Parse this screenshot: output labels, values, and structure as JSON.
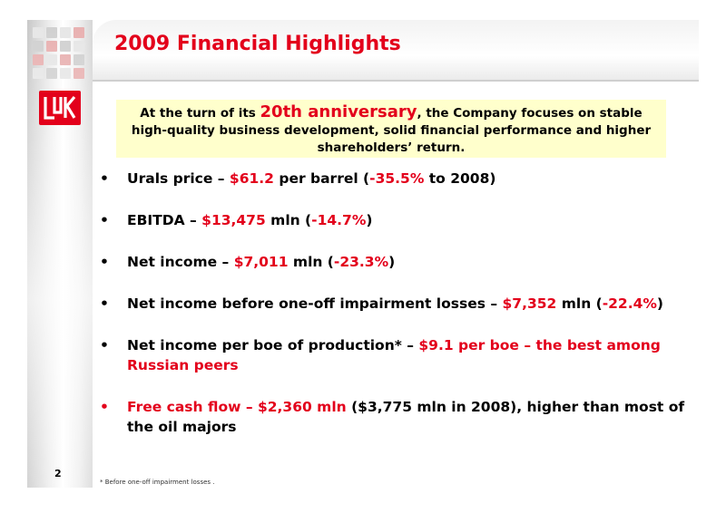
{
  "title": "2009 Financial Highlights",
  "callout": {
    "part1": "At the turn of its ",
    "highlight": "20th anniversary",
    "part2": ", the Company focuses on stable high-quality business development, solid financial performance and higher shareholders’ return."
  },
  "bullets": [
    {
      "segments": [
        {
          "text": "Urals price – ",
          "red": false
        },
        {
          "text": "$61.2",
          "red": true
        },
        {
          "text": " per barrel (",
          "red": false
        },
        {
          "text": "-35.5%",
          "red": true
        },
        {
          "text": " to 2008)",
          "red": false
        }
      ]
    },
    {
      "segments": [
        {
          "text": "EBITDA – ",
          "red": false
        },
        {
          "text": "$13,475",
          "red": true
        },
        {
          "text": " mln (",
          "red": false
        },
        {
          "text": "-14.7%",
          "red": true
        },
        {
          "text": ")",
          "red": false
        }
      ]
    },
    {
      "segments": [
        {
          "text": "Net income – ",
          "red": false
        },
        {
          "text": "$7,011",
          "red": true
        },
        {
          "text": " mln (",
          "red": false
        },
        {
          "text": "-23.3%",
          "red": true
        },
        {
          "text": ")",
          "red": false
        }
      ]
    },
    {
      "segments": [
        {
          "text": "Net income before one-off impairment losses – ",
          "red": false
        },
        {
          "text": "$7,352",
          "red": true
        },
        {
          "text": " mln (",
          "red": false
        },
        {
          "text": "-22.4%",
          "red": true
        },
        {
          "text": ")",
          "red": false
        }
      ]
    },
    {
      "segments": [
        {
          "text": "Net income per boe of production* – ",
          "red": false
        },
        {
          "text": "$9.1 per boe – the best among Russian peers",
          "red": true
        }
      ]
    },
    {
      "bullet_red": true,
      "segments": [
        {
          "text": "Free cash flow – $2,360 mln",
          "red": true
        },
        {
          "text": " ($3,775 mln in 2008), higher than most of the oil majors",
          "red": false
        }
      ]
    }
  ],
  "bullet_symbol": "•",
  "page_number": "2",
  "footnote": "* Before one-off impairment losses .",
  "colors": {
    "accent": "#e3001b",
    "callout_bg": "#ffffcc"
  },
  "icons": {
    "logo": "lukoil-logo"
  }
}
